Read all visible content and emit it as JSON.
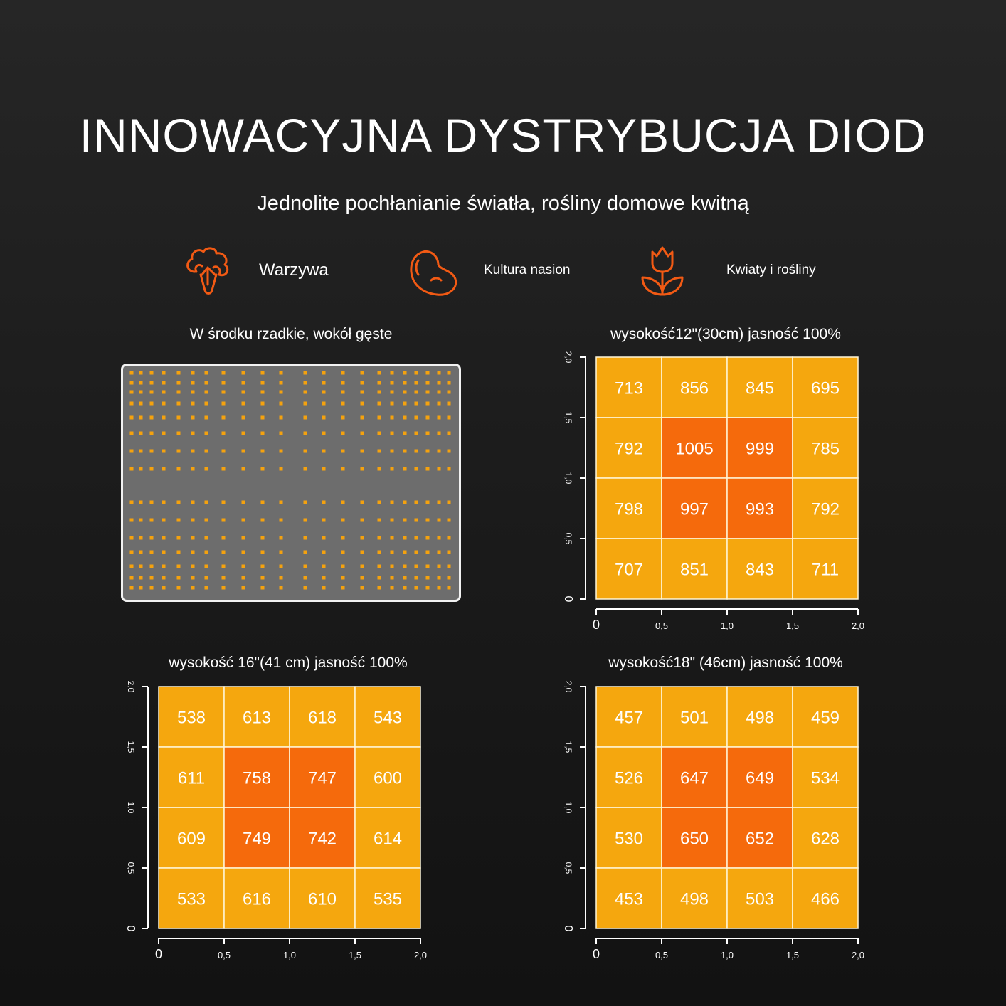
{
  "header": {
    "title": "INNOWACYJNA DYSTRYBUCJA DIOD",
    "subtitle": "Jednolite pochłanianie światła, rośliny domowe kwitną"
  },
  "features": [
    {
      "label": "Warzywa",
      "icon": "vegetable-icon"
    },
    {
      "label": "Kultura nasion",
      "icon": "seed-icon"
    },
    {
      "label": "Kwiaty i rośliny",
      "icon": "flower-icon"
    }
  ],
  "colors": {
    "accent": "#f25a14",
    "grid_outer": "#f5a70e",
    "grid_center": "#f56a0c",
    "led": "#f5a20e",
    "board": "#6d6d6d"
  },
  "led_board": {
    "title": "W środku rzadkie, wokół gęste"
  },
  "chart_data": [
    {
      "type": "heatmap",
      "title": "wysokość12\"(30cm) jasność 100%",
      "x_ticks": [
        "0",
        "0,5",
        "1,0",
        "1,5",
        "2,0"
      ],
      "y_ticks": [
        "0",
        "0,5",
        "1,0",
        "1,5",
        "2,0"
      ],
      "xlim": [
        0,
        2.0
      ],
      "ylim": [
        0,
        2.0
      ],
      "values": [
        [
          713,
          856,
          845,
          695
        ],
        [
          792,
          1005,
          999,
          785
        ],
        [
          798,
          997,
          993,
          792
        ],
        [
          707,
          851,
          843,
          711
        ]
      ]
    },
    {
      "type": "heatmap",
      "title": "wysokość 16\"(41 cm) jasność 100%",
      "x_ticks": [
        "0",
        "0,5",
        "1,0",
        "1,5",
        "2,0"
      ],
      "y_ticks": [
        "0",
        "0,5",
        "1,0",
        "1,5",
        "2,0"
      ],
      "xlim": [
        0,
        2.0
      ],
      "ylim": [
        0,
        2.0
      ],
      "values": [
        [
          538,
          613,
          618,
          543
        ],
        [
          611,
          758,
          747,
          600
        ],
        [
          609,
          749,
          742,
          614
        ],
        [
          533,
          616,
          610,
          535
        ]
      ]
    },
    {
      "type": "heatmap",
      "title": "wysokość18\" (46cm) jasność 100%",
      "x_ticks": [
        "0",
        "0,5",
        "1,0",
        "1,5",
        "2,0"
      ],
      "y_ticks": [
        "0",
        "0,5",
        "1,0",
        "1,5",
        "2,0"
      ],
      "xlim": [
        0,
        2.0
      ],
      "ylim": [
        0,
        2.0
      ],
      "values": [
        [
          457,
          501,
          498,
          459
        ],
        [
          526,
          647,
          649,
          534
        ],
        [
          530,
          650,
          652,
          628
        ],
        [
          453,
          498,
          503,
          466
        ]
      ]
    }
  ]
}
